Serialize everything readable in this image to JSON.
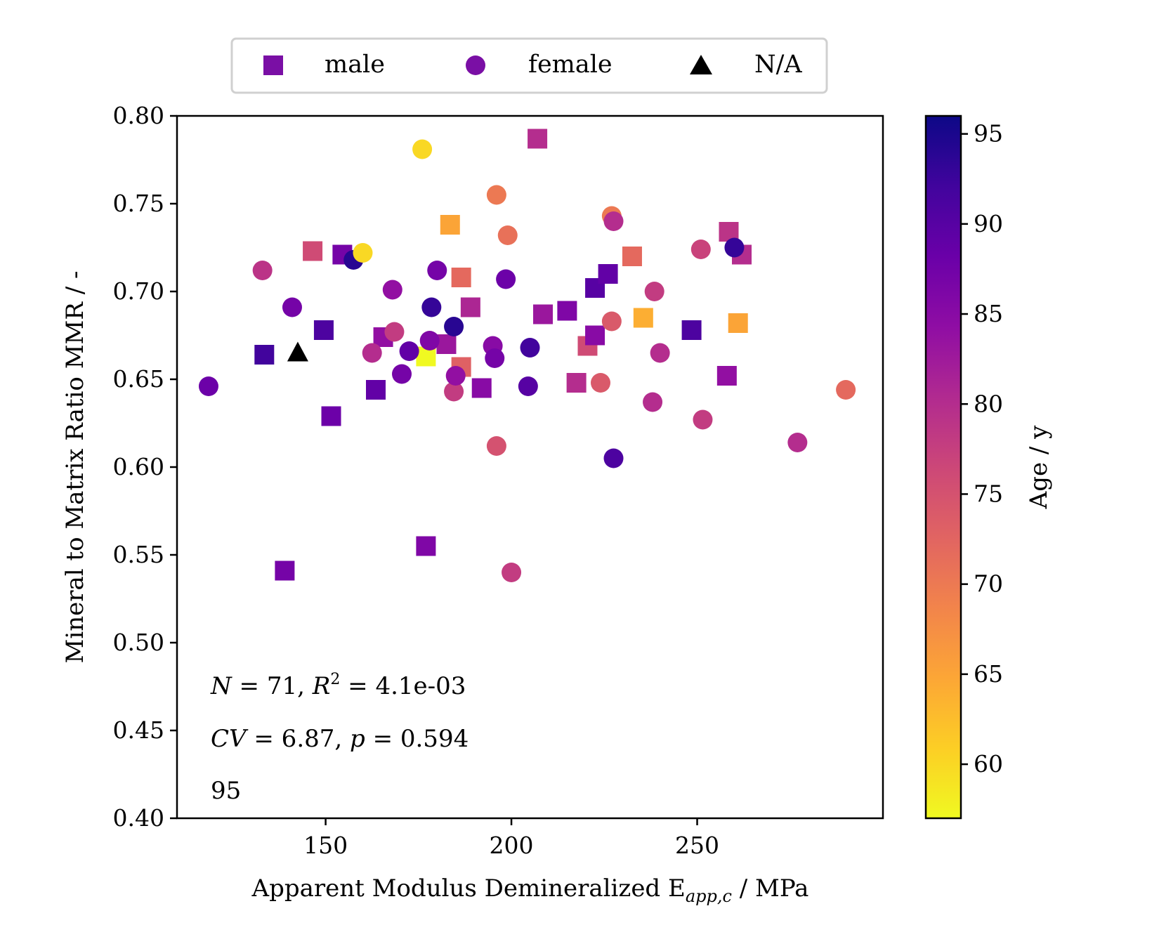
{
  "chart_data": {
    "type": "scatter",
    "xlabel": "Apparent Modulus Demineralized E",
    "xlabel_sub": "app,c",
    "xlabel_unit": " / MPa",
    "ylabel": "Mineral to Matrix Ratio MMR / -",
    "xlim": [
      110,
      300
    ],
    "ylim": [
      0.4,
      0.8
    ],
    "x_ticks": [
      150,
      200,
      250
    ],
    "y_ticks": [
      0.4,
      0.45,
      0.5,
      0.55,
      0.6,
      0.65,
      0.7,
      0.75,
      0.8
    ],
    "x_tick_labels": [
      "150",
      "200",
      "250"
    ],
    "y_tick_labels": [
      "0.40",
      "0.45",
      "0.50",
      "0.55",
      "0.60",
      "0.65",
      "0.70",
      "0.75",
      "0.80"
    ],
    "grid": false,
    "legend": {
      "placement": "top-center, outside",
      "entries": [
        {
          "label": "male",
          "marker": "square",
          "color": "#7a0fa5"
        },
        {
          "label": "female",
          "marker": "circle",
          "color": "#7a0fa5"
        },
        {
          "label": "N/A",
          "marker": "triangle",
          "color": "#000000"
        }
      ]
    },
    "colorbar": {
      "label": "Age / y",
      "range": [
        57,
        96
      ],
      "ticks": [
        60,
        65,
        70,
        75,
        80,
        85,
        90,
        95
      ],
      "tick_labels": [
        "60",
        "65",
        "70",
        "75",
        "80",
        "85",
        "90",
        "95"
      ],
      "colormap": "plasma"
    },
    "annotations": {
      "line1_lhs": "N",
      "line1_mid": " = 71, ",
      "line1_r": "R",
      "line1_sup": "2",
      "line1_rhs": " = 4.1e-03",
      "line2_cv": "CV",
      "line2_mid": " = 6.87, ",
      "line2_p": "p",
      "line2_rhs": " = 0.594",
      "line3": "95"
    },
    "series": [
      {
        "name": "male",
        "marker": "square",
        "points": [
          {
            "x": 133.5,
            "y": 0.664,
            "age": 92
          },
          {
            "x": 139,
            "y": 0.541,
            "age": 87
          },
          {
            "x": 146.5,
            "y": 0.723,
            "age": 76
          },
          {
            "x": 149.5,
            "y": 0.678,
            "age": 91
          },
          {
            "x": 151.5,
            "y": 0.629,
            "age": 88
          },
          {
            "x": 154.5,
            "y": 0.721,
            "age": 87
          },
          {
            "x": 163.5,
            "y": 0.644,
            "age": 89
          },
          {
            "x": 165.5,
            "y": 0.674,
            "age": 84
          },
          {
            "x": 177,
            "y": 0.555,
            "age": 86
          },
          {
            "x": 177,
            "y": 0.663,
            "age": 57
          },
          {
            "x": 182.5,
            "y": 0.67,
            "age": 83
          },
          {
            "x": 183.5,
            "y": 0.738,
            "age": 65
          },
          {
            "x": 186.5,
            "y": 0.708,
            "age": 72
          },
          {
            "x": 186.5,
            "y": 0.657,
            "age": 73
          },
          {
            "x": 189,
            "y": 0.691,
            "age": 81
          },
          {
            "x": 192,
            "y": 0.645,
            "age": 85
          },
          {
            "x": 207,
            "y": 0.787,
            "age": 80
          },
          {
            "x": 208.5,
            "y": 0.687,
            "age": 83
          },
          {
            "x": 215,
            "y": 0.689,
            "age": 86
          },
          {
            "x": 217.5,
            "y": 0.648,
            "age": 80
          },
          {
            "x": 220.5,
            "y": 0.669,
            "age": 76
          },
          {
            "x": 222.5,
            "y": 0.675,
            "age": 85
          },
          {
            "x": 222.5,
            "y": 0.702,
            "age": 90
          },
          {
            "x": 226,
            "y": 0.71,
            "age": 89
          },
          {
            "x": 232.5,
            "y": 0.72,
            "age": 72
          },
          {
            "x": 235.5,
            "y": 0.685,
            "age": 64
          },
          {
            "x": 248.5,
            "y": 0.678,
            "age": 91
          },
          {
            "x": 258,
            "y": 0.652,
            "age": 84
          },
          {
            "x": 258.5,
            "y": 0.734,
            "age": 79
          },
          {
            "x": 261,
            "y": 0.682,
            "age": 65
          },
          {
            "x": 262,
            "y": 0.721,
            "age": 80
          }
        ]
      },
      {
        "name": "female",
        "marker": "circle",
        "points": [
          {
            "x": 118.5,
            "y": 0.646,
            "age": 88
          },
          {
            "x": 133,
            "y": 0.712,
            "age": 79
          },
          {
            "x": 141,
            "y": 0.691,
            "age": 87
          },
          {
            "x": 157.5,
            "y": 0.718,
            "age": 94
          },
          {
            "x": 160,
            "y": 0.722,
            "age": 60
          },
          {
            "x": 162.5,
            "y": 0.665,
            "age": 80
          },
          {
            "x": 168,
            "y": 0.701,
            "age": 84
          },
          {
            "x": 168.5,
            "y": 0.677,
            "age": 78
          },
          {
            "x": 170.5,
            "y": 0.653,
            "age": 87
          },
          {
            "x": 172.5,
            "y": 0.666,
            "age": 89
          },
          {
            "x": 176,
            "y": 0.781,
            "age": 60
          },
          {
            "x": 178,
            "y": 0.672,
            "age": 86
          },
          {
            "x": 178.5,
            "y": 0.691,
            "age": 93
          },
          {
            "x": 180,
            "y": 0.712,
            "age": 87
          },
          {
            "x": 184.5,
            "y": 0.68,
            "age": 94
          },
          {
            "x": 184.5,
            "y": 0.643,
            "age": 78
          },
          {
            "x": 185,
            "y": 0.652,
            "age": 84
          },
          {
            "x": 195,
            "y": 0.669,
            "age": 85
          },
          {
            "x": 195.5,
            "y": 0.662,
            "age": 87
          },
          {
            "x": 196,
            "y": 0.755,
            "age": 70
          },
          {
            "x": 196,
            "y": 0.612,
            "age": 75
          },
          {
            "x": 198.5,
            "y": 0.707,
            "age": 88
          },
          {
            "x": 199,
            "y": 0.732,
            "age": 71
          },
          {
            "x": 200,
            "y": 0.54,
            "age": 78
          },
          {
            "x": 204.5,
            "y": 0.646,
            "age": 90
          },
          {
            "x": 205,
            "y": 0.668,
            "age": 92
          },
          {
            "x": 224,
            "y": 0.648,
            "age": 74
          },
          {
            "x": 227,
            "y": 0.683,
            "age": 74
          },
          {
            "x": 227,
            "y": 0.743,
            "age": 70
          },
          {
            "x": 227.5,
            "y": 0.74,
            "age": 80
          },
          {
            "x": 227.5,
            "y": 0.605,
            "age": 91
          },
          {
            "x": 238,
            "y": 0.637,
            "age": 80
          },
          {
            "x": 238.5,
            "y": 0.7,
            "age": 78
          },
          {
            "x": 240,
            "y": 0.665,
            "age": 80
          },
          {
            "x": 251,
            "y": 0.724,
            "age": 77
          },
          {
            "x": 251.5,
            "y": 0.627,
            "age": 78
          },
          {
            "x": 260,
            "y": 0.725,
            "age": 93
          },
          {
            "x": 277,
            "y": 0.614,
            "age": 80
          },
          {
            "x": 290,
            "y": 0.644,
            "age": 72
          }
        ]
      },
      {
        "name": "N/A",
        "marker": "triangle",
        "points": [
          {
            "x": 142.5,
            "y": 0.665,
            "age": null
          }
        ]
      }
    ]
  }
}
